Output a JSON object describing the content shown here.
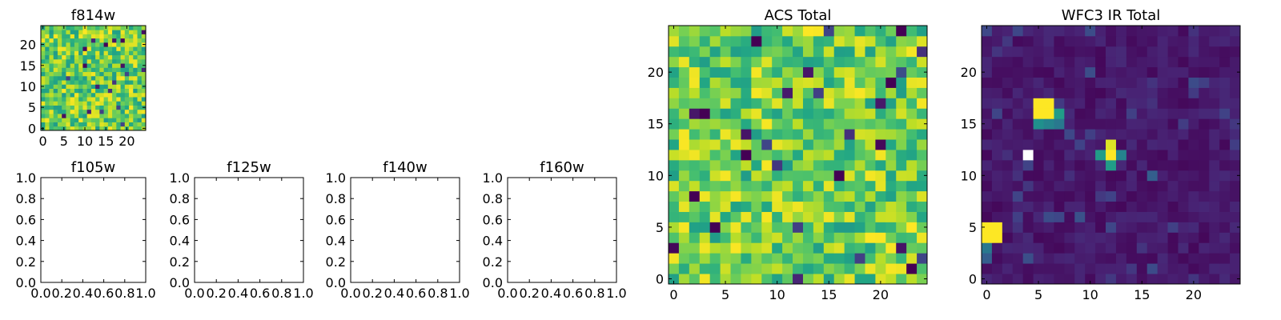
{
  "colors": {
    "background": "#ffffff",
    "frame": "#000000",
    "colormap": "viridis"
  },
  "chart_data": [
    {
      "id": "f814w",
      "type": "heatmap",
      "title": "f814w",
      "grid_size": 25,
      "xlim": [
        -0.5,
        24.5
      ],
      "ylim": [
        -0.5,
        24.5
      ],
      "xticks": [
        0,
        5,
        10,
        15,
        20
      ],
      "yticks": [
        0,
        5,
        10,
        15,
        20
      ],
      "xtick_labels": [
        "0",
        "5",
        "10",
        "15",
        "20"
      ],
      "ytick_labels": [
        "0",
        "5",
        "10",
        "15",
        "20"
      ],
      "value_range": [
        0.0,
        1.0
      ],
      "pattern": "noise-high",
      "seed": 814
    },
    {
      "id": "acs_total",
      "type": "heatmap",
      "title": "ACS Total",
      "grid_size": 25,
      "xlim": [
        -0.5,
        24.5
      ],
      "ylim": [
        -0.5,
        24.5
      ],
      "xticks": [
        0,
        5,
        10,
        15,
        20
      ],
      "yticks": [
        0,
        5,
        10,
        15,
        20
      ],
      "xtick_labels": [
        "0",
        "5",
        "10",
        "15",
        "20"
      ],
      "ytick_labels": [
        "0",
        "5",
        "10",
        "15",
        "20"
      ],
      "value_range": [
        0.0,
        1.0
      ],
      "pattern": "noise-high",
      "seed": 4242,
      "dark_cells": [
        [
          3,
          16
        ],
        [
          21,
          19
        ],
        [
          22,
          24
        ],
        [
          7,
          12
        ],
        [
          16,
          10
        ],
        [
          2,
          8
        ],
        [
          4,
          5
        ],
        [
          8,
          23
        ],
        [
          23,
          1
        ]
      ]
    },
    {
      "id": "wfc3_ir_total",
      "type": "heatmap",
      "title": "WFC3 IR Total",
      "grid_size": 25,
      "xlim": [
        -0.5,
        24.5
      ],
      "ylim": [
        -0.5,
        24.5
      ],
      "xticks": [
        0,
        5,
        10,
        15,
        20
      ],
      "yticks": [
        0,
        5,
        10,
        15,
        20
      ],
      "xtick_labels": [
        "0",
        "5",
        "10",
        "15",
        "20"
      ],
      "ytick_labels": [
        "0",
        "5",
        "10",
        "15",
        "20"
      ],
      "value_range": [
        0.0,
        1.0
      ],
      "pattern": "noise-low",
      "seed": 3160,
      "hot_cells": [
        {
          "x": 5,
          "y": 17,
          "v": 1.0
        },
        {
          "x": 6,
          "y": 17,
          "v": 1.0
        },
        {
          "x": 5,
          "y": 16,
          "v": 1.0
        },
        {
          "x": 6,
          "y": 16,
          "v": 1.0
        },
        {
          "x": 7,
          "y": 16,
          "v": 0.55
        },
        {
          "x": 5,
          "y": 15,
          "v": 0.5
        },
        {
          "x": 6,
          "y": 15,
          "v": 0.45
        },
        {
          "x": 7,
          "y": 15,
          "v": 0.4
        },
        {
          "x": 12,
          "y": 13,
          "v": 0.95
        },
        {
          "x": 11,
          "y": 12,
          "v": 0.55
        },
        {
          "x": 12,
          "y": 12,
          "v": 1.0
        },
        {
          "x": 13,
          "y": 12,
          "v": 0.45
        },
        {
          "x": 12,
          "y": 11,
          "v": 0.55
        },
        {
          "x": 0,
          "y": 5,
          "v": 1.0
        },
        {
          "x": 1,
          "y": 5,
          "v": 1.0
        },
        {
          "x": 0,
          "y": 4,
          "v": 1.0
        },
        {
          "x": 1,
          "y": 4,
          "v": 1.0
        },
        {
          "x": 0,
          "y": 3,
          "v": 0.4
        },
        {
          "x": 0,
          "y": 2,
          "v": 0.3
        },
        {
          "x": 16,
          "y": 10,
          "v": 0.3
        },
        {
          "x": 9,
          "y": 6,
          "v": 0.25
        }
      ],
      "blank_cells": [
        [
          4,
          12
        ]
      ]
    },
    {
      "id": "f105w",
      "type": "empty",
      "title": "f105w",
      "xlim": [
        0.0,
        1.0
      ],
      "ylim": [
        0.0,
        1.0
      ],
      "xtick_labels": [
        "0.0",
        "0.2",
        "0.4",
        "0.6",
        "0.8",
        "1.0"
      ],
      "ytick_labels": [
        "0.0",
        "0.2",
        "0.4",
        "0.6",
        "0.8",
        "1.0"
      ]
    },
    {
      "id": "f125w",
      "type": "empty",
      "title": "f125w",
      "xlim": [
        0.0,
        1.0
      ],
      "ylim": [
        0.0,
        1.0
      ],
      "xtick_labels": [
        "0.0",
        "0.2",
        "0.4",
        "0.6",
        "0.8",
        "1.0"
      ],
      "ytick_labels": [
        "0.0",
        "0.2",
        "0.4",
        "0.6",
        "0.8",
        "1.0"
      ]
    },
    {
      "id": "f140w",
      "type": "empty",
      "title": "f140w",
      "xlim": [
        0.0,
        1.0
      ],
      "ylim": [
        0.0,
        1.0
      ],
      "xtick_labels": [
        "0.0",
        "0.2",
        "0.4",
        "0.6",
        "0.8",
        "1.0"
      ],
      "ytick_labels": [
        "0.0",
        "0.2",
        "0.4",
        "0.6",
        "0.8",
        "1.0"
      ]
    },
    {
      "id": "f160w",
      "type": "empty",
      "title": "f160w",
      "xlim": [
        0.0,
        1.0
      ],
      "ylim": [
        0.0,
        1.0
      ],
      "xtick_labels": [
        "0.0",
        "0.2",
        "0.4",
        "0.6",
        "0.8",
        "1.0"
      ],
      "ytick_labels": [
        "0.0",
        "0.2",
        "0.4",
        "0.6",
        "0.8",
        "1.0"
      ]
    }
  ]
}
